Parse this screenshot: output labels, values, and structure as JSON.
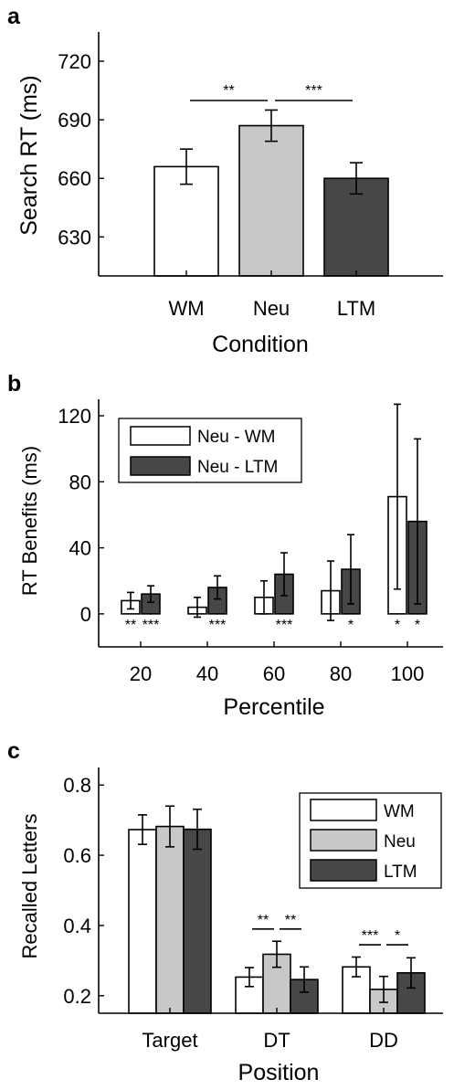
{
  "colors": {
    "WM": "#ffffff",
    "Neu": "#c8c8c8",
    "LTM": "#474747",
    "axis": "#000000"
  },
  "chart_data": [
    {
      "panel_label": "a",
      "type": "bar",
      "categories": [
        "WM",
        "Neu",
        "LTM"
      ],
      "values": [
        666,
        687,
        660
      ],
      "errors": [
        9,
        8,
        8
      ],
      "ylabel": "Search RT (ms)",
      "xlabel": "Condition",
      "ylim": [
        610,
        735
      ],
      "yticks": [
        630,
        660,
        690,
        720
      ],
      "grid": false,
      "significance": [
        {
          "from": 0,
          "to": 1,
          "label": "**"
        },
        {
          "from": 1,
          "to": 2,
          "label": "***"
        }
      ]
    },
    {
      "panel_label": "b",
      "type": "bar",
      "categories": [
        "20",
        "40",
        "60",
        "80",
        "100"
      ],
      "series": [
        {
          "name": "Neu - WM",
          "values": [
            8,
            4,
            10,
            14,
            71
          ],
          "errors": [
            5,
            6,
            10,
            18,
            56
          ],
          "stars": [
            "**",
            "",
            "",
            "",
            "*"
          ]
        },
        {
          "name": "Neu - LTM",
          "values": [
            12,
            16,
            24,
            27,
            56
          ],
          "errors": [
            5,
            7,
            13,
            21,
            50
          ],
          "stars": [
            "***",
            "***",
            "***",
            "*",
            "*"
          ]
        }
      ],
      "ylabel": "RT Benefits (ms)",
      "xlabel": "Percentile",
      "ylim": [
        -20,
        130
      ],
      "yticks": [
        0,
        40,
        80,
        120
      ],
      "legend_position": "top-left",
      "grid": false
    },
    {
      "panel_label": "c",
      "type": "bar",
      "categories": [
        "Target",
        "DT",
        "DD"
      ],
      "series": [
        {
          "name": "WM",
          "values": [
            0.673,
            0.253,
            0.282
          ],
          "errors": [
            0.042,
            0.027,
            0.028
          ]
        },
        {
          "name": "Neu",
          "values": [
            0.682,
            0.318,
            0.218
          ],
          "errors": [
            0.058,
            0.037,
            0.037
          ]
        },
        {
          "name": "LTM",
          "values": [
            0.674,
            0.246,
            0.265
          ],
          "errors": [
            0.057,
            0.036,
            0.043
          ]
        }
      ],
      "ylabel": "Recalled Letters",
      "xlabel": "Position",
      "ylim": [
        0.15,
        0.85
      ],
      "yticks": [
        0.2,
        0.4,
        0.6,
        0.8
      ],
      "legend_position": "top-right",
      "grid": false,
      "significance": [
        {
          "group": 1,
          "from": 0,
          "to": 1,
          "label": "**"
        },
        {
          "group": 1,
          "from": 1,
          "to": 2,
          "label": "**"
        },
        {
          "group": 2,
          "from": 0,
          "to": 1,
          "label": "***"
        },
        {
          "group": 2,
          "from": 1,
          "to": 2,
          "label": "*"
        }
      ]
    }
  ]
}
